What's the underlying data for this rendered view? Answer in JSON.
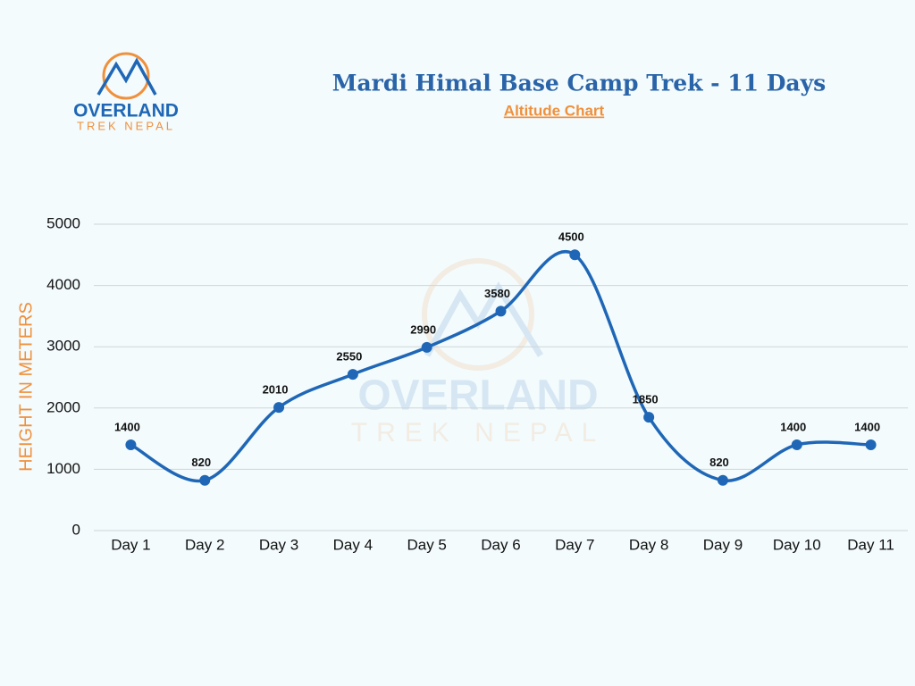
{
  "logo": {
    "name": "OVERLAND",
    "tagline": "TREK NEPAL"
  },
  "chart_data": {
    "type": "line",
    "title": "Mardi Himal Base Camp Trek - 11 Days",
    "subtitle": "Altitude Chart",
    "y_label": "HEIGHT IN METERS",
    "categories": [
      "Day 1",
      "Day 2",
      "Day 3",
      "Day 4",
      "Day 5",
      "Day 6",
      "Day 7",
      "Day 8",
      "Day 9",
      "Day 10",
      "Day 11"
    ],
    "values": [
      1400,
      820,
      2010,
      2550,
      2990,
      3580,
      4500,
      1850,
      820,
      1400,
      1400
    ],
    "color": "#1f67b6",
    "ylim": [
      0,
      5000
    ],
    "yticks": [
      0,
      1000,
      2000,
      3000,
      4000,
      5000
    ],
    "grid": true,
    "smooth": true
  }
}
